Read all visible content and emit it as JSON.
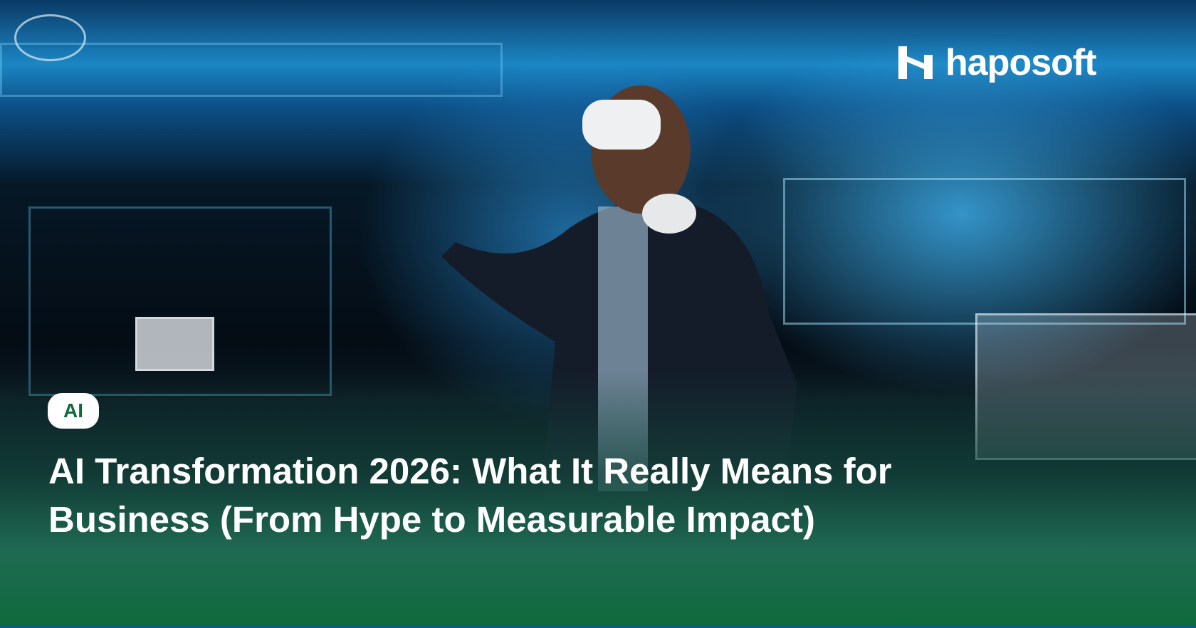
{
  "brand": {
    "name": "haposoft",
    "icon": "haposoft-h-logo-mark"
  },
  "category_badge": {
    "label": "AI"
  },
  "title": {
    "line1": "AI Transformation 2026: What It Really Means for",
    "line2": "Business (From Hype to Measurable Impact)"
  },
  "colors": {
    "badge_text": "#0d6a3a",
    "footer_gradient": "#0f6a3c",
    "background_glow": "#1b86c4"
  }
}
